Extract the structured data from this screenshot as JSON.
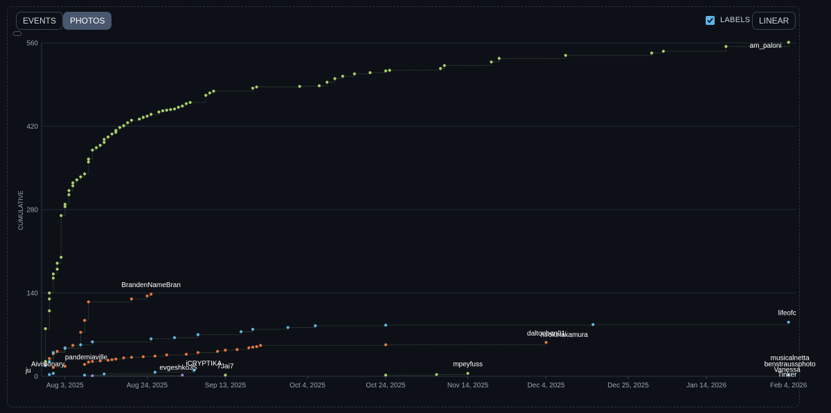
{
  "toolbar": {
    "events_label": "EVENTS",
    "photos_label": "PHOTOS",
    "labels_label": "LABELS",
    "scale_label": "LINEAR",
    "labels_checked": true
  },
  "colors": {
    "background": "#0d1117",
    "grid": "#1e2838",
    "green": "#a8cf6b",
    "orange": "#e4783f",
    "blue": "#62b6e6",
    "purple": "#9a80d9",
    "label": "#ffffff",
    "axis_text": "#9aa4b2"
  },
  "chart_data": {
    "type": "scatter",
    "ylabel": "CUMULATIVE",
    "xlabel": "",
    "ylim": [
      0,
      560
    ],
    "yticks": [
      0,
      140,
      280,
      420,
      560
    ],
    "xlim": [
      "2025-07-28",
      "2026-02-06"
    ],
    "xticks": [
      {
        "date": "2025-08-03",
        "label": "Aug 3, 2025"
      },
      {
        "date": "2025-08-24",
        "label": "Aug 24, 2025"
      },
      {
        "date": "2025-09-13",
        "label": "Sep 13, 2025"
      },
      {
        "date": "2025-10-04",
        "label": "Oct 4, 2025"
      },
      {
        "date": "2025-10-24",
        "label": "Oct 24, 2025"
      },
      {
        "date": "2025-11-14",
        "label": "Nov 14, 2025"
      },
      {
        "date": "2025-12-04",
        "label": "Dec 4, 2025"
      },
      {
        "date": "2025-12-25",
        "label": "Dec 25, 2025"
      },
      {
        "date": "2026-01-14",
        "label": "Jan 14, 2026"
      },
      {
        "date": "2026-02-04",
        "label": "Feb 4, 2026"
      }
    ],
    "grid": true,
    "legend": "none",
    "series": [
      {
        "name": "am_paloni",
        "color": "green",
        "points": [
          [
            "2025-07-29",
            25
          ],
          [
            "2025-07-29",
            80
          ],
          [
            "2025-07-30",
            110
          ],
          [
            "2025-07-30",
            130
          ],
          [
            "2025-07-30",
            140
          ],
          [
            "2025-07-31",
            165
          ],
          [
            "2025-07-31",
            172
          ],
          [
            "2025-08-01",
            180
          ],
          [
            "2025-08-01",
            190
          ],
          [
            "2025-08-02",
            200
          ],
          [
            "2025-08-02",
            270
          ],
          [
            "2025-08-03",
            285
          ],
          [
            "2025-08-03",
            289
          ],
          [
            "2025-08-04",
            305
          ],
          [
            "2025-08-04",
            312
          ],
          [
            "2025-08-05",
            320
          ],
          [
            "2025-08-05",
            325
          ],
          [
            "2025-08-06",
            330
          ],
          [
            "2025-08-07",
            335
          ],
          [
            "2025-08-08",
            340
          ],
          [
            "2025-08-09",
            360
          ],
          [
            "2025-08-09",
            365
          ],
          [
            "2025-08-10",
            380
          ],
          [
            "2025-08-11",
            384
          ],
          [
            "2025-08-12",
            388
          ],
          [
            "2025-08-13",
            393
          ],
          [
            "2025-08-13",
            398
          ],
          [
            "2025-08-14",
            402
          ],
          [
            "2025-08-15",
            407
          ],
          [
            "2025-08-16",
            410
          ],
          [
            "2025-08-16",
            413
          ],
          [
            "2025-08-17",
            418
          ],
          [
            "2025-08-18",
            421
          ],
          [
            "2025-08-19",
            426
          ],
          [
            "2025-08-20",
            430
          ],
          [
            "2025-08-22",
            432
          ],
          [
            "2025-08-23",
            435
          ],
          [
            "2025-08-24",
            437
          ],
          [
            "2025-08-25",
            440
          ],
          [
            "2025-08-27",
            444
          ],
          [
            "2025-08-28",
            446
          ],
          [
            "2025-08-29",
            447
          ],
          [
            "2025-08-30",
            448
          ],
          [
            "2025-08-31",
            449
          ],
          [
            "2025-09-01",
            452
          ],
          [
            "2025-09-02",
            454
          ],
          [
            "2025-09-03",
            458
          ],
          [
            "2025-09-04",
            460
          ],
          [
            "2025-09-08",
            472
          ],
          [
            "2025-09-09",
            476
          ],
          [
            "2025-09-10",
            479
          ],
          [
            "2025-09-20",
            484
          ],
          [
            "2025-09-21",
            486
          ],
          [
            "2025-10-02",
            487
          ],
          [
            "2025-10-07",
            488
          ],
          [
            "2025-10-09",
            494
          ],
          [
            "2025-10-11",
            500
          ],
          [
            "2025-10-13",
            504
          ],
          [
            "2025-10-16",
            508
          ],
          [
            "2025-10-20",
            510
          ],
          [
            "2025-10-24",
            513
          ],
          [
            "2025-10-25",
            514
          ],
          [
            "2025-11-07",
            517
          ],
          [
            "2025-11-08",
            522
          ],
          [
            "2025-11-20",
            528
          ],
          [
            "2025-11-22",
            534
          ],
          [
            "2025-12-09",
            539
          ],
          [
            "2025-12-31",
            543
          ],
          [
            "2026-01-03",
            546
          ],
          [
            "2026-01-19",
            554
          ],
          [
            "2026-02-04",
            561
          ]
        ]
      },
      {
        "name": "BrandenNameBran",
        "color": "orange",
        "points": [
          [
            "2025-07-29",
            20
          ],
          [
            "2025-07-30",
            30
          ],
          [
            "2025-07-31",
            38
          ],
          [
            "2025-08-01",
            42
          ],
          [
            "2025-08-03",
            48
          ],
          [
            "2025-08-05",
            52
          ],
          [
            "2025-08-07",
            74
          ],
          [
            "2025-08-08",
            94
          ],
          [
            "2025-08-09",
            125
          ],
          [
            "2025-08-20",
            130
          ],
          [
            "2025-08-24",
            135
          ],
          [
            "2025-08-25",
            138
          ]
        ]
      },
      {
        "name": "daltonben01",
        "color": "orange",
        "points": [
          [
            "2025-08-08",
            20
          ],
          [
            "2025-08-09",
            24
          ],
          [
            "2025-08-10",
            25
          ],
          [
            "2025-08-12",
            26
          ],
          [
            "2025-08-14",
            27
          ],
          [
            "2025-08-15",
            28
          ],
          [
            "2025-08-16",
            29
          ],
          [
            "2025-08-18",
            31
          ],
          [
            "2025-08-20",
            32
          ],
          [
            "2025-08-23",
            33
          ],
          [
            "2025-08-26",
            34
          ],
          [
            "2025-08-29",
            36
          ],
          [
            "2025-09-03",
            37
          ],
          [
            "2025-09-06",
            40
          ],
          [
            "2025-09-11",
            42
          ],
          [
            "2025-09-13",
            44
          ],
          [
            "2025-09-16",
            45
          ],
          [
            "2025-09-19",
            48
          ],
          [
            "2025-09-20",
            49
          ],
          [
            "2025-09-21",
            50
          ],
          [
            "2025-09-22",
            52
          ],
          [
            "2025-10-24",
            53
          ],
          [
            "2025-12-04",
            57
          ]
        ]
      },
      {
        "name": "lifeofc",
        "color": "blue",
        "points": [
          [
            "2025-07-29",
            18
          ],
          [
            "2025-07-30",
            25
          ],
          [
            "2025-07-31",
            40
          ],
          [
            "2025-08-03",
            47
          ],
          [
            "2025-08-07",
            53
          ],
          [
            "2025-08-10",
            58
          ],
          [
            "2025-08-25",
            63
          ],
          [
            "2025-08-31",
            65
          ],
          [
            "2025-09-06",
            70
          ],
          [
            "2025-09-17",
            75
          ],
          [
            "2025-09-20",
            79
          ],
          [
            "2025-09-29",
            82
          ],
          [
            "2025-10-06",
            85
          ],
          [
            "2025-10-24",
            86
          ],
          [
            "2025-12-16",
            87
          ],
          [
            "2026-02-04",
            91
          ]
        ]
      },
      {
        "name": "mpeyfuss",
        "color": "green",
        "points": [
          [
            "2025-10-24",
            2
          ],
          [
            "2025-11-06",
            3
          ],
          [
            "2025-11-14",
            5
          ]
        ]
      },
      {
        "name": "7Jai7",
        "color": "green",
        "points": [
          [
            "2025-09-13",
            2
          ]
        ]
      },
      {
        "name": "iCRYPTIKA",
        "color": "blue",
        "points": [
          [
            "2025-08-08",
            2
          ],
          [
            "2025-08-13",
            4
          ],
          [
            "2025-08-26",
            7
          ],
          [
            "2025-09-05",
            10
          ]
        ]
      },
      {
        "name": "evgeshko35",
        "color": "purple",
        "points": [
          [
            "2025-08-10",
            1
          ],
          [
            "2025-09-02",
            2
          ]
        ]
      },
      {
        "name": "pandemiaville",
        "color": "orange",
        "points": [
          [
            "2025-07-31",
            15
          ],
          [
            "2025-08-03",
            17
          ]
        ]
      },
      {
        "name": "Aivisionary",
        "color": "blue",
        "points": [
          [
            "2025-07-30",
            3
          ],
          [
            "2025-07-31",
            5
          ]
        ]
      },
      {
        "name": "musicalnetta",
        "color": "blue",
        "points": [
          [
            "2026-02-04",
            2
          ]
        ]
      }
    ],
    "labels": [
      {
        "text": "am_paloni",
        "series": "am_paloni"
      },
      {
        "text": "BrandenNameBran",
        "series": "BrandenNameBran"
      },
      {
        "text": "lifeofc",
        "series": "lifeofc"
      },
      {
        "text": "daltonben01",
        "series": "daltonben01"
      },
      {
        "text": "mpeyfuss",
        "series": "mpeyfuss"
      },
      {
        "text": "7Jai7",
        "series": "7Jai7"
      },
      {
        "text": "evgeshko35",
        "series": "evgeshko35"
      },
      {
        "text": "iCRYPTIKA",
        "series": "iCRYPTIKA"
      },
      {
        "text": "pandemiaville",
        "series": "pandemiaville"
      },
      {
        "text": "Aivisionary",
        "series": "Aivisionary"
      },
      {
        "text": "musicalnetta",
        "series": "musicalnetta"
      },
      {
        "text": "benstraussphoto",
        "series": "musicalnetta"
      },
      {
        "text": "hirokinakamura",
        "series": "daltonben01"
      },
      {
        "text": "ju",
        "series": "Aivisionary"
      },
      {
        "text": "Vanessa",
        "series": "musicalnetta"
      },
      {
        "text": "Tinker",
        "series": "musicalnetta"
      }
    ]
  }
}
